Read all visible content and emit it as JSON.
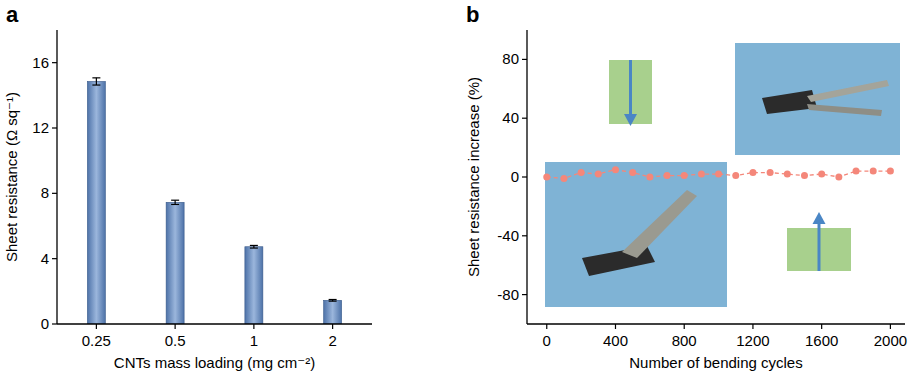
{
  "chart_data": [
    {
      "type": "bar",
      "title": "a",
      "x_label": "CNTs mass loading (mg cm⁻²)",
      "y_label": "Sheet resistance (Ω sq⁻¹)",
      "categories": [
        "0.25",
        "0.5",
        "1",
        "2"
      ],
      "values": [
        14.85,
        7.45,
        4.73,
        1.45
      ],
      "errors": [
        0.22,
        0.13,
        0.08,
        0.05
      ],
      "color": "#4d72a8",
      "ylim": [
        0,
        18
      ],
      "yticks": [
        0,
        4,
        8,
        12,
        16
      ],
      "grid": false
    },
    {
      "type": "line",
      "title": "b",
      "x_label": "Number of bending cycles",
      "y_label": "Sheet resistance increase (%)",
      "x": [
        0,
        100,
        200,
        300,
        400,
        500,
        600,
        700,
        800,
        900,
        1000,
        1100,
        1200,
        1300,
        1400,
        1500,
        1600,
        1700,
        1800,
        1900,
        2000
      ],
      "series": [
        {
          "name": "Sheet resistance increase",
          "color": "#f4877a",
          "marker": "circle",
          "line_style": "dashed",
          "values": [
            0,
            -1,
            3,
            2,
            5,
            3,
            0,
            1,
            1,
            2,
            2,
            1,
            3,
            3,
            2,
            1,
            2,
            0,
            4,
            4,
            4
          ]
        }
      ],
      "xlim": [
        -115,
        2085
      ],
      "xticks": [
        0,
        400,
        800,
        1200,
        1600,
        2000
      ],
      "ylim": [
        -100,
        100
      ],
      "yticks": [
        -80,
        -40,
        0,
        40,
        80
      ],
      "grid": false
    }
  ]
}
